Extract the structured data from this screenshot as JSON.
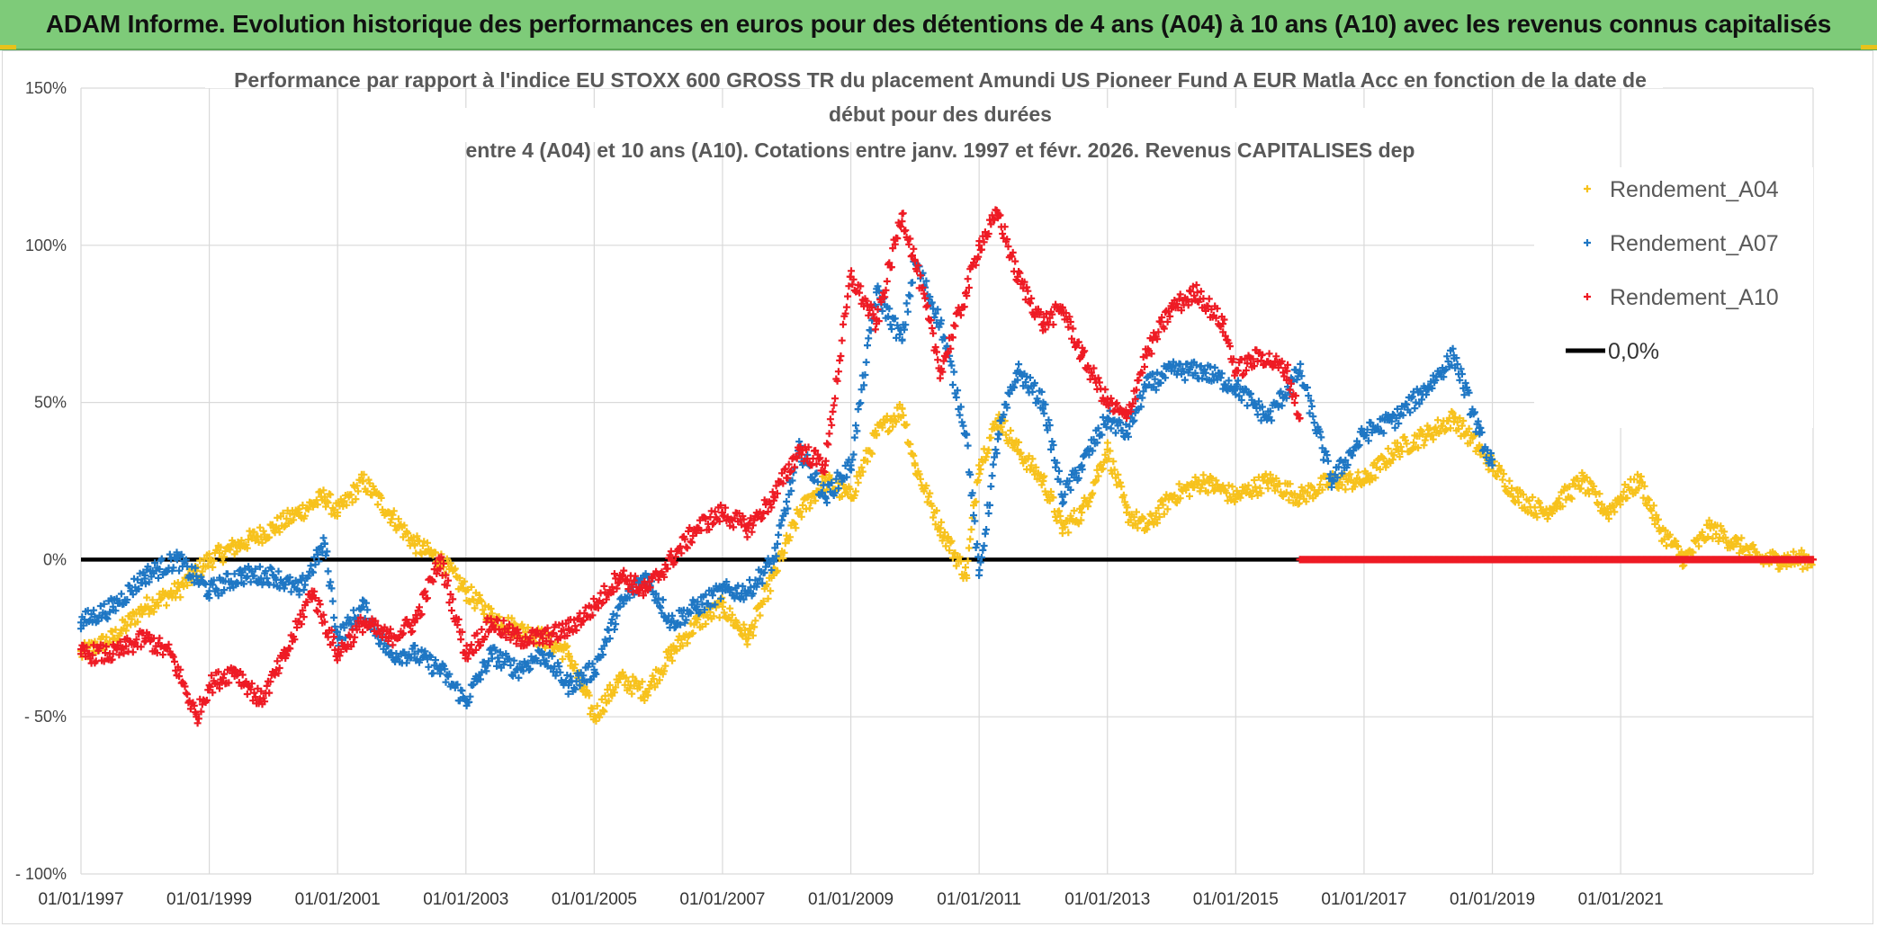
{
  "header": {
    "banner": "ADAM Informe. Evolution historique des performances en euros pour des détentions de 4 ans (A04) à 10 ans (A10) avec les revenus connus capitalisés"
  },
  "colors": {
    "banner_bg": "#7ecb79",
    "A04": "#f7c21d",
    "A07": "#1f77c4",
    "A10": "#ee1b24",
    "zero": "#000000",
    "grid": "#d9d9d9"
  },
  "chart_data": {
    "type": "scatter",
    "title": [
      "Performance par rapport à l'indice EU STOXX 600 GROSS TR  du placement Amundi US Pioneer Fund A EUR Matla Acc en fonction de la date de",
      "début pour des durées",
      "entre 4 (A04) et 10 ans (A10). Cotations entre janv. 1997 et févr. 2026. Revenus CAPITALISES dep"
    ],
    "xlabel": "",
    "ylabel": "",
    "xlim": [
      1997.0,
      2024.0
    ],
    "ylim": [
      -100,
      150
    ],
    "yticks": [
      150,
      100,
      50,
      0,
      -50,
      -100
    ],
    "ytick_labels": [
      "150%",
      "100%",
      "50%",
      "0%",
      "- 50%",
      "- 100%"
    ],
    "xticks": [
      1997,
      1999,
      2001,
      2003,
      2005,
      2007,
      2009,
      2011,
      2013,
      2015,
      2017,
      2019,
      2021
    ],
    "xtick_labels": [
      "01/01/1997",
      "01/01/1999",
      "01/01/2001",
      "01/01/2003",
      "01/01/2005",
      "01/01/2007",
      "01/01/2009",
      "01/01/2011",
      "01/01/2013",
      "01/01/2015",
      "01/01/2017",
      "01/01/2019",
      "01/01/2021"
    ],
    "legend": {
      "position": "top-right",
      "entries": [
        "Rendement_A04",
        "Rendement_A07",
        "Rendement_A10",
        "0,0%"
      ]
    },
    "series": [
      {
        "name": "Rendement_A04",
        "x": [
          1997.0,
          1997.5,
          1998.0,
          1998.5,
          1999.0,
          1999.5,
          2000.0,
          2000.4,
          2000.8,
          2001.0,
          2001.4,
          2001.8,
          2002.2,
          2002.6,
          2003.0,
          2003.4,
          2003.8,
          2004.2,
          2004.6,
          2005.0,
          2005.4,
          2005.8,
          2006.2,
          2006.6,
          2007.0,
          2007.4,
          2007.8,
          2008.2,
          2008.6,
          2009.0,
          2009.4,
          2009.8,
          2010.0,
          2010.4,
          2010.8,
          2011.0,
          2011.3,
          2011.6,
          2012.0,
          2012.3,
          2012.6,
          2013.0,
          2013.3,
          2013.6,
          2014.0,
          2014.5,
          2015.0,
          2015.5,
          2016.0,
          2016.5,
          2017.0,
          2017.5,
          2018.0,
          2018.4,
          2018.8,
          2019.0,
          2019.4,
          2019.8,
          2020.0,
          2020.4,
          2020.8,
          2021.0,
          2021.3,
          2021.6,
          2022.0,
          2022.4,
          2022.8,
          2023.2,
          2023.6,
          2024.0
        ],
        "y": [
          -30,
          -25,
          -15,
          -10,
          0,
          5,
          10,
          15,
          20,
          15,
          25,
          15,
          5,
          0,
          -10,
          -18,
          -22,
          -25,
          -30,
          -50,
          -38,
          -42,
          -30,
          -20,
          -15,
          -25,
          -5,
          15,
          25,
          20,
          40,
          48,
          30,
          10,
          -5,
          30,
          45,
          35,
          25,
          10,
          15,
          35,
          15,
          10,
          20,
          25,
          20,
          25,
          20,
          25,
          25,
          35,
          40,
          45,
          35,
          30,
          20,
          15,
          18,
          25,
          15,
          20,
          25,
          10,
          0,
          10,
          5,
          0,
          0,
          0
        ]
      },
      {
        "name": "Rendement_A07",
        "x": [
          1997.0,
          1997.5,
          1998.0,
          1998.5,
          1999.0,
          1999.5,
          2000.0,
          2000.4,
          2000.8,
          2001.0,
          2001.4,
          2001.8,
          2002.2,
          2002.6,
          2003.0,
          2003.4,
          2003.8,
          2004.2,
          2004.6,
          2005.0,
          2005.4,
          2005.8,
          2006.2,
          2006.6,
          2007.0,
          2007.4,
          2007.8,
          2008.2,
          2008.6,
          2009.0,
          2009.4,
          2009.8,
          2010.0,
          2010.4,
          2010.8,
          2011.0,
          2011.3,
          2011.6,
          2012.0,
          2012.3,
          2012.6,
          2013.0,
          2013.3,
          2013.6,
          2014.0,
          2014.5,
          2015.0,
          2015.5,
          2016.0,
          2016.5,
          2017.0,
          2017.5,
          2018.0,
          2018.4,
          2018.8,
          2019.0
        ],
        "y": [
          -20,
          -15,
          -5,
          0,
          -10,
          -5,
          -5,
          -10,
          5,
          -25,
          -15,
          -30,
          -30,
          -35,
          -45,
          -30,
          -35,
          -30,
          -40,
          -35,
          -15,
          -5,
          -20,
          -15,
          -10,
          -10,
          0,
          35,
          20,
          30,
          85,
          70,
          95,
          75,
          40,
          -5,
          40,
          60,
          50,
          20,
          30,
          45,
          40,
          55,
          60,
          60,
          55,
          45,
          60,
          25,
          40,
          45,
          55,
          65,
          40,
          30
        ]
      },
      {
        "name": "Rendement_A10",
        "x": [
          1997.0,
          1997.5,
          1998.0,
          1998.4,
          1998.8,
          1999.0,
          1999.4,
          1999.8,
          2000.2,
          2000.6,
          2001.0,
          2001.4,
          2001.8,
          2002.2,
          2002.6,
          2003.0,
          2003.4,
          2003.8,
          2004.2,
          2004.6,
          2005.0,
          2005.4,
          2005.8,
          2006.2,
          2006.6,
          2007.0,
          2007.4,
          2007.8,
          2008.2,
          2008.6,
          2009.0,
          2009.4,
          2009.8,
          2010.0,
          2010.4,
          2010.8,
          2011.0,
          2011.3,
          2011.6,
          2012.0,
          2012.3,
          2012.6,
          2013.0,
          2013.3,
          2013.6,
          2014.0,
          2014.4,
          2014.8,
          2015.0,
          2015.4,
          2015.8,
          2016.0
        ],
        "y": [
          -30,
          -30,
          -25,
          -30,
          -50,
          -40,
          -35,
          -45,
          -30,
          -10,
          -30,
          -20,
          -25,
          -20,
          0,
          -30,
          -20,
          -25,
          -25,
          -22,
          -15,
          -5,
          -10,
          0,
          10,
          15,
          10,
          20,
          35,
          30,
          90,
          75,
          110,
          95,
          60,
          85,
          100,
          110,
          90,
          75,
          80,
          65,
          50,
          45,
          65,
          80,
          85,
          75,
          60,
          65,
          60,
          45
        ]
      },
      {
        "name": "Rendement_A10_zero",
        "x": [
          2016.0,
          2024.0
        ],
        "y": [
          0,
          0
        ]
      }
    ]
  }
}
